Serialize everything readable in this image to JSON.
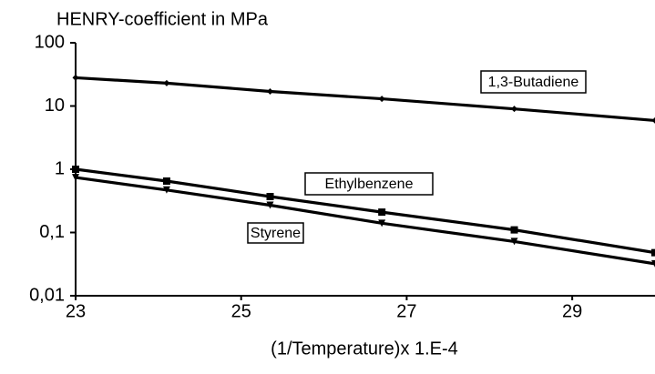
{
  "chart_data": {
    "type": "line",
    "title": "HENRY-coefficient in MPa",
    "x_label": "(1/Temperature)x 1.E-4",
    "x": [
      23,
      24.1,
      25.35,
      26.7,
      28.3,
      30
    ],
    "series": [
      {
        "name": "1,3-Butadiene",
        "color": "#000000",
        "marker": "diamond",
        "values": [
          28,
          23,
          17,
          13,
          9,
          5.9
        ]
      },
      {
        "name": "Ethylbenzene",
        "color": "#000000",
        "marker": "square",
        "values": [
          1.0,
          0.65,
          0.37,
          0.21,
          0.11,
          0.048
        ]
      },
      {
        "name": "Styrene",
        "color": "#000000",
        "marker": "triangle",
        "values": [
          0.74,
          0.47,
          0.27,
          0.14,
          0.072,
          0.032
        ]
      }
    ],
    "xlim": [
      23,
      30
    ],
    "xticks": [
      23,
      25,
      27,
      29
    ],
    "ylim": [
      0.01,
      100
    ],
    "yticks": [
      {
        "value": 0.01,
        "label": "0,01"
      },
      {
        "value": 0.1,
        "label": "0,1"
      },
      1,
      10,
      100
    ],
    "log_y": true,
    "grid": false
  }
}
